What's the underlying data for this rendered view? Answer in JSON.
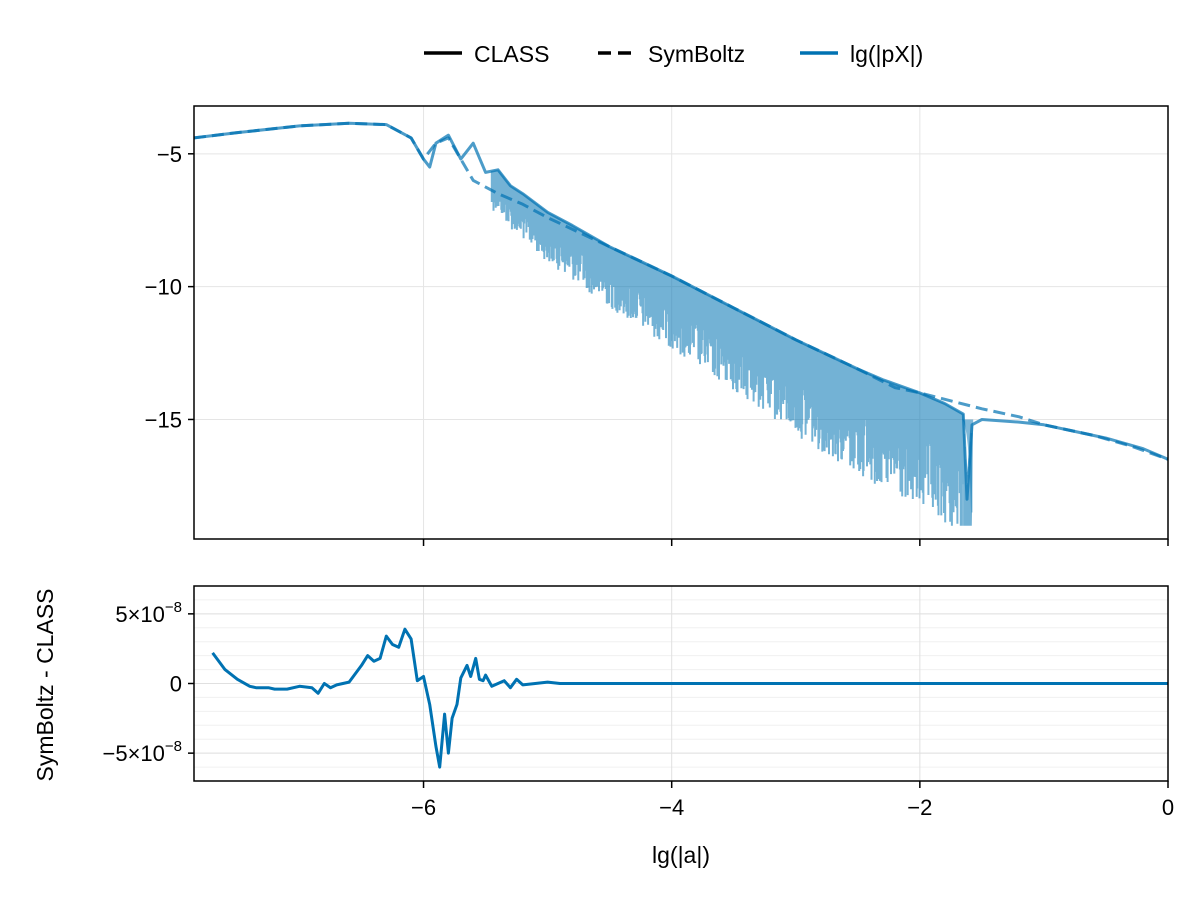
{
  "chart_data": [
    {
      "type": "line",
      "panel": "top",
      "xlim": [
        -7.85,
        0
      ],
      "ylim": [
        -19.5,
        -3.2
      ],
      "yticks": [
        {
          "value": -5,
          "label": "−5"
        },
        {
          "value": -10,
          "label": "−10"
        },
        {
          "value": -15,
          "label": "−15"
        }
      ],
      "xticks": [
        -6,
        -4,
        -2,
        0
      ],
      "grid": true,
      "legend": {
        "placement": "top-center",
        "entries": [
          {
            "label": "CLASS",
            "style": "solid",
            "color": "#000000"
          },
          {
            "label": "SymBoltz",
            "style": "dashed",
            "color": "#000000"
          },
          {
            "label": "lg(|pX|)",
            "style": "solid",
            "color": "#0072b2"
          }
        ]
      },
      "series": [
        {
          "style": "solid",
          "color": "#0072b2",
          "x": [
            -7.85,
            -7.5,
            -7.0,
            -6.6,
            -6.3,
            -6.1,
            -6.0,
            -5.95,
            -5.9,
            -5.8,
            -5.7,
            -5.6,
            -5.5,
            -5.4,
            -5.3,
            -5.2,
            -5.0,
            -4.8,
            -4.5,
            -4.0,
            -3.5,
            -3.0,
            -2.5,
            -2.3,
            -2.0,
            -1.8,
            -1.65,
            -1.62,
            -1.58,
            -1.5,
            -1.2,
            -1.0,
            -0.8,
            -0.5,
            -0.2,
            0.0
          ],
          "y": [
            -4.4,
            -4.2,
            -3.95,
            -3.85,
            -3.9,
            -4.4,
            -5.2,
            -5.5,
            -4.6,
            -4.3,
            -5.2,
            -4.6,
            -5.7,
            -5.6,
            -6.2,
            -6.5,
            -7.2,
            -7.7,
            -8.5,
            -9.6,
            -10.8,
            -12.0,
            -13.1,
            -13.5,
            -14.0,
            -14.4,
            -14.8,
            -18.0,
            -15.2,
            -15.0,
            -15.1,
            -15.2,
            -15.4,
            -15.7,
            -16.1,
            -16.5
          ]
        },
        {
          "style": "dashed",
          "color": "#0072b2",
          "x": [
            -7.85,
            -7.5,
            -7.0,
            -6.6,
            -6.3,
            -6.1,
            -6.0,
            -5.9,
            -5.8,
            -5.6,
            -5.4,
            -5.2,
            -5.0,
            -4.5,
            -4.0,
            -3.5,
            -3.0,
            -2.5,
            -2.2,
            -2.0,
            -1.5,
            -1.2,
            -1.0,
            -0.6,
            -0.3,
            0.0
          ],
          "y": [
            -4.4,
            -4.2,
            -3.95,
            -3.85,
            -3.9,
            -4.4,
            -5.2,
            -4.6,
            -4.4,
            -6.0,
            -6.5,
            -6.9,
            -7.4,
            -8.5,
            -9.6,
            -10.8,
            -12.0,
            -13.1,
            -13.8,
            -14.0,
            -14.6,
            -14.9,
            -15.2,
            -15.6,
            -16.0,
            -16.5
          ]
        }
      ]
    },
    {
      "type": "line",
      "panel": "bottom",
      "xlabel": "lg(|a|)",
      "ylabel": "SymBoltz - CLASS",
      "xlim": [
        -7.85,
        0
      ],
      "ylim": [
        -7e-08,
        7e-08
      ],
      "yticks": [
        {
          "value": 5e-08,
          "label": "5×10",
          "exp": "−8"
        },
        {
          "value": 0,
          "label": "0",
          "exp": ""
        },
        {
          "value": -5e-08,
          "label": "−5×10",
          "exp": "−8"
        }
      ],
      "xticks": [
        {
          "value": -6,
          "label": "−6"
        },
        {
          "value": -4,
          "label": "−4"
        },
        {
          "value": -2,
          "label": "−2"
        },
        {
          "value": 0,
          "label": "0"
        }
      ],
      "grid": true,
      "series": [
        {
          "color": "#0072b2",
          "x": [
            -7.7,
            -7.6,
            -7.5,
            -7.4,
            -7.35,
            -7.25,
            -7.2,
            -7.1,
            -7.0,
            -6.9,
            -6.85,
            -6.8,
            -6.75,
            -6.7,
            -6.6,
            -6.5,
            -6.45,
            -6.4,
            -6.35,
            -6.3,
            -6.25,
            -6.2,
            -6.15,
            -6.1,
            -6.05,
            -6.0,
            -5.95,
            -5.9,
            -5.87,
            -5.83,
            -5.8,
            -5.77,
            -5.73,
            -5.7,
            -5.65,
            -5.62,
            -5.58,
            -5.55,
            -5.52,
            -5.5,
            -5.45,
            -5.4,
            -5.35,
            -5.3,
            -5.25,
            -5.2,
            -5.1,
            -5.0,
            -4.9,
            -4.8,
            -4.5,
            -4.0,
            -3.0,
            -2.0,
            -1.0,
            0.0
          ],
          "y": [
            2.2e-08,
            1e-08,
            3e-09,
            -2e-09,
            -3e-09,
            -3e-09,
            -4e-09,
            -4e-09,
            -2e-09,
            -3e-09,
            -7e-09,
            0.0,
            -3e-09,
            -1e-09,
            1e-09,
            1.3e-08,
            2e-08,
            1.6e-08,
            1.8e-08,
            3.4e-08,
            2.8e-08,
            2.6e-08,
            3.9e-08,
            3.2e-08,
            2e-09,
            5e-09,
            -1.5e-08,
            -4.5e-08,
            -6e-08,
            -2.2e-08,
            -5e-08,
            -2.5e-08,
            -1.5e-08,
            4e-09,
            1.3e-08,
            5e-09,
            1.8e-08,
            3e-09,
            2e-09,
            6e-09,
            -2e-09,
            0.0,
            2e-09,
            -3e-09,
            3e-09,
            -1e-09,
            0.0,
            1e-09,
            0.0,
            0.0,
            0.0,
            0.0,
            0.0,
            0.0,
            0.0,
            0.0
          ]
        }
      ]
    }
  ]
}
